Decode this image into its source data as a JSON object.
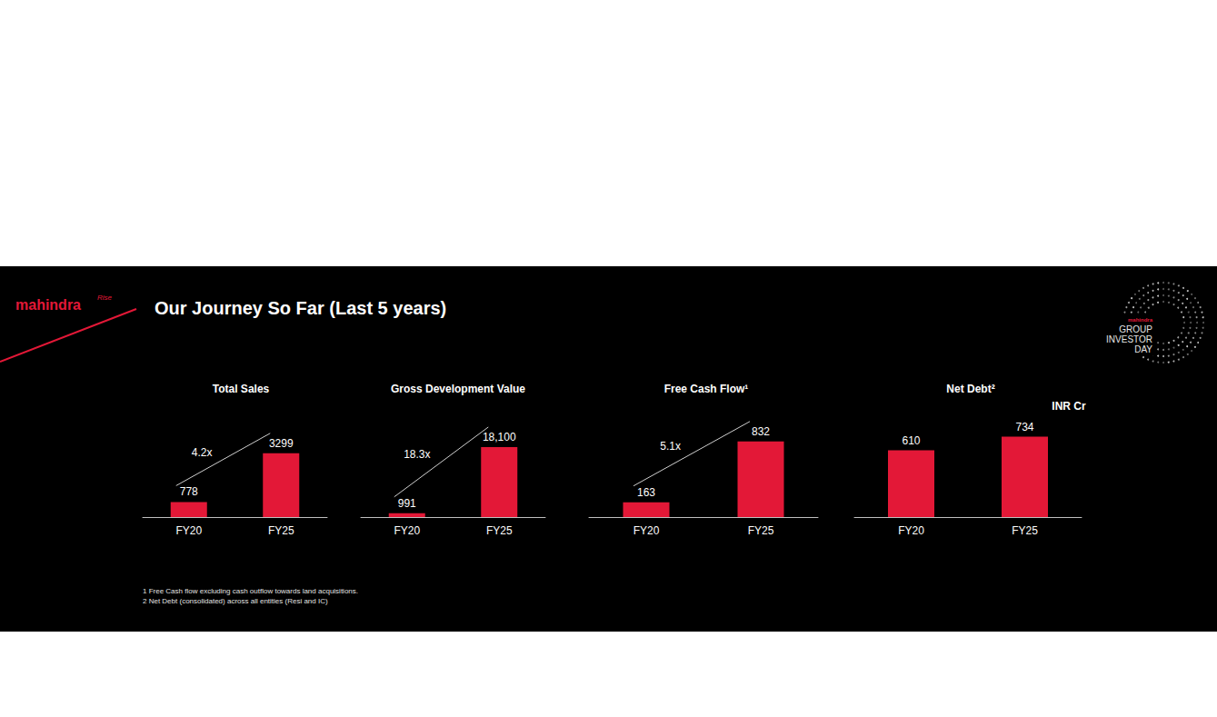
{
  "slide": {
    "logo": "mahindra",
    "logo_tag": "Rise",
    "title": "Our Journey So Far (Last 5 years)",
    "badge_brand": "mahindra",
    "badge": [
      "GROUP",
      "INVESTOR",
      "DAY"
    ],
    "unit_note": "INR Cr",
    "footnotes": [
      "1 Free Cash flow excluding cash outflow towards land acquisitions.",
      "2 Net Debt (consolidated) across all entities (Resi and IC)"
    ]
  },
  "chart_data": [
    {
      "type": "bar",
      "title": "Total Sales",
      "categories": [
        "FY20",
        "FY25"
      ],
      "values": [
        778,
        3299
      ],
      "color": "#e31837",
      "ylim": [
        0,
        4700
      ],
      "tick_labels": "x",
      "data_labels": true,
      "grid": false,
      "annotations": [
        "4.2x"
      ]
    },
    {
      "type": "bar",
      "title": "Gross Development Value",
      "categories": [
        "FY20",
        "FY25"
      ],
      "values": [
        991,
        18100
      ],
      "value_labels": [
        "991",
        "18,100"
      ],
      "color": "#e31837",
      "ylim": [
        0,
        23500
      ],
      "tick_labels": "x",
      "data_labels": true,
      "grid": false,
      "annotations": [
        "18.3x"
      ]
    },
    {
      "type": "bar",
      "title": "Free Cash Flow¹",
      "categories": [
        "FY20",
        "FY25"
      ],
      "values": [
        163,
        832
      ],
      "color": "#e31837",
      "ylim": [
        0,
        1000
      ],
      "tick_labels": "x",
      "data_labels": true,
      "grid": false,
      "annotations": [
        "5.1x"
      ]
    },
    {
      "type": "bar",
      "title": "Net Debt²",
      "categories": [
        "FY20",
        "FY25"
      ],
      "values": [
        610,
        734
      ],
      "color": "#e31837",
      "ylim": [
        0,
        830
      ],
      "tick_labels": "x",
      "data_labels": true,
      "grid": false
    }
  ]
}
